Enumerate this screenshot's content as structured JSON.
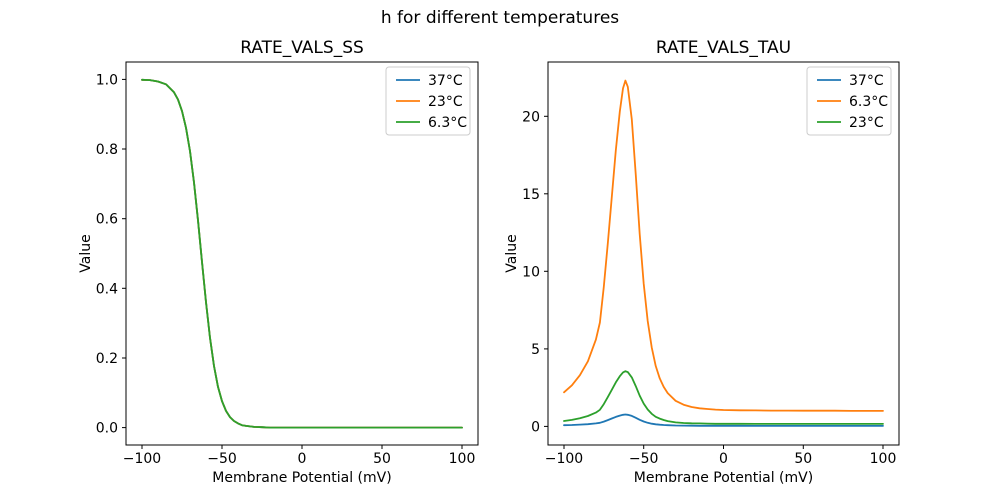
{
  "figure": {
    "suptitle": "h for different temperatures",
    "background": "#ffffff",
    "text_color": "#000000",
    "spine_color": "#000000",
    "legend_border_color": "#cccccc"
  },
  "chart_data": [
    {
      "type": "line",
      "title": "RATE_VALS_SS",
      "xlabel": "Membrane Potential (mV)",
      "ylabel": "Value",
      "xlim": [
        -110,
        110
      ],
      "ylim": [
        -0.05,
        1.05
      ],
      "grid": false,
      "legend_position": "upper right",
      "xticks": {
        "values": [
          -100,
          -50,
          0,
          50,
          100
        ],
        "labels": [
          "−100",
          "−50",
          "0",
          "50",
          "100"
        ]
      },
      "yticks": {
        "values": [
          0.0,
          0.2,
          0.4,
          0.6,
          0.8,
          1.0
        ],
        "labels": [
          "0.0",
          "0.2",
          "0.4",
          "0.6",
          "0.8",
          "1.0"
        ]
      },
      "x": [
        -100,
        -95,
        -90,
        -85,
        -80,
        -77.5,
        -75,
        -72.5,
        -70,
        -67.5,
        -65,
        -62.5,
        -60,
        -57.5,
        -55,
        -52.5,
        -50,
        -47.5,
        -45,
        -42.5,
        -40,
        -37.5,
        -35,
        -30,
        -25,
        -20,
        -15,
        -10,
        -5,
        0,
        10,
        20,
        30,
        40,
        50,
        60,
        70,
        80,
        90,
        100
      ],
      "series": [
        {
          "name": "37°C",
          "color": "#1f77b4",
          "values": [
            0.999,
            0.998,
            0.994,
            0.986,
            0.963,
            0.942,
            0.909,
            0.861,
            0.794,
            0.704,
            0.595,
            0.476,
            0.36,
            0.258,
            0.177,
            0.117,
            0.076,
            0.048,
            0.03,
            0.019,
            0.012,
            0.007,
            0.005,
            0.002,
            0.001,
            0.0,
            0.0,
            0.0,
            0.0,
            0.0,
            0.0,
            0.0,
            0.0,
            0.0,
            0.0,
            0.0,
            0.0,
            0.0,
            0.0,
            0.0
          ]
        },
        {
          "name": "23°C",
          "color": "#ff7f0e",
          "values": [
            0.999,
            0.998,
            0.994,
            0.986,
            0.963,
            0.942,
            0.909,
            0.861,
            0.794,
            0.704,
            0.595,
            0.476,
            0.36,
            0.258,
            0.177,
            0.117,
            0.076,
            0.048,
            0.03,
            0.019,
            0.012,
            0.007,
            0.005,
            0.002,
            0.001,
            0.0,
            0.0,
            0.0,
            0.0,
            0.0,
            0.0,
            0.0,
            0.0,
            0.0,
            0.0,
            0.0,
            0.0,
            0.0,
            0.0,
            0.0
          ]
        },
        {
          "name": "6.3°C",
          "color": "#2ca02c",
          "values": [
            0.999,
            0.998,
            0.994,
            0.986,
            0.963,
            0.942,
            0.909,
            0.861,
            0.794,
            0.704,
            0.595,
            0.476,
            0.36,
            0.258,
            0.177,
            0.117,
            0.076,
            0.048,
            0.03,
            0.019,
            0.012,
            0.007,
            0.005,
            0.002,
            0.001,
            0.0,
            0.0,
            0.0,
            0.0,
            0.0,
            0.0,
            0.0,
            0.0,
            0.0,
            0.0,
            0.0,
            0.0,
            0.0,
            0.0,
            0.0
          ]
        }
      ]
    },
    {
      "type": "line",
      "title": "RATE_VALS_TAU",
      "xlabel": "Membrane Potential (mV)",
      "ylabel": "Value",
      "xlim": [
        -110,
        110
      ],
      "ylim": [
        -1.2,
        23.5
      ],
      "grid": false,
      "legend_position": "upper right",
      "xticks": {
        "values": [
          -100,
          -50,
          0,
          50,
          100
        ],
        "labels": [
          "−100",
          "−50",
          "0",
          "50",
          "100"
        ]
      },
      "yticks": {
        "values": [
          0,
          5,
          10,
          15,
          20
        ],
        "labels": [
          "0",
          "5",
          "10",
          "15",
          "20"
        ]
      },
      "x": [
        -100,
        -95,
        -90,
        -85,
        -80,
        -77.5,
        -75,
        -72.5,
        -70,
        -67.5,
        -65,
        -63,
        -61.5,
        -60,
        -57.5,
        -55,
        -52.5,
        -50,
        -47.5,
        -45,
        -42.5,
        -40,
        -37.5,
        -35,
        -30,
        -25,
        -20,
        -15,
        -10,
        -5,
        0,
        10,
        20,
        30,
        40,
        50,
        60,
        70,
        80,
        90,
        100
      ],
      "series": [
        {
          "name": "37°C",
          "color": "#1f77b4",
          "values": [
            0.075,
            0.091,
            0.113,
            0.144,
            0.192,
            0.229,
            0.308,
            0.404,
            0.507,
            0.61,
            0.695,
            0.747,
            0.764,
            0.75,
            0.678,
            0.555,
            0.425,
            0.315,
            0.233,
            0.175,
            0.134,
            0.106,
            0.087,
            0.074,
            0.057,
            0.048,
            0.043,
            0.04,
            0.038,
            0.037,
            0.036,
            0.036,
            0.035,
            0.035,
            0.035,
            0.035,
            0.035,
            0.034,
            0.034,
            0.034,
            0.034
          ]
        },
        {
          "name": "6.3°C",
          "color": "#ff7f0e",
          "values": [
            2.2,
            2.65,
            3.3,
            4.2,
            5.6,
            6.7,
            9.0,
            11.8,
            14.8,
            17.8,
            20.3,
            21.8,
            22.3,
            21.9,
            19.8,
            16.2,
            12.4,
            9.2,
            6.8,
            5.1,
            3.9,
            3.1,
            2.55,
            2.15,
            1.65,
            1.4,
            1.25,
            1.17,
            1.12,
            1.08,
            1.06,
            1.04,
            1.03,
            1.02,
            1.02,
            1.01,
            1.01,
            1.01,
            1.0,
            1.0,
            1.0
          ]
        },
        {
          "name": "23°C",
          "color": "#2ca02c",
          "values": [
            0.35,
            0.42,
            0.53,
            0.67,
            0.89,
            1.07,
            1.44,
            1.89,
            2.36,
            2.84,
            3.24,
            3.48,
            3.56,
            3.5,
            3.16,
            2.59,
            1.98,
            1.47,
            1.09,
            0.81,
            0.62,
            0.5,
            0.41,
            0.34,
            0.26,
            0.22,
            0.2,
            0.19,
            0.18,
            0.17,
            0.17,
            0.17,
            0.16,
            0.16,
            0.16,
            0.16,
            0.16,
            0.16,
            0.16,
            0.16,
            0.16
          ]
        }
      ]
    }
  ]
}
